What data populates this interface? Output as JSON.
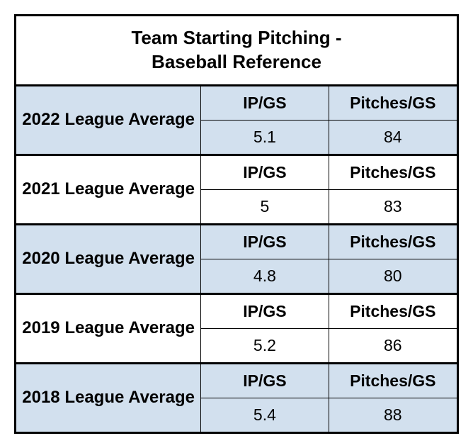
{
  "title_line1": "Team Starting Pitching -",
  "title_line2": "Baseball Reference",
  "col1_header": "IP/GS",
  "col2_header": "Pitches/GS",
  "shaded_bg": "#d2e0ee",
  "border_color": "#000000",
  "font_family": "Arial",
  "title_fontsize": 26,
  "label_fontsize": 24,
  "cell_fontsize": 23,
  "rows": [
    {
      "label": "2022 League Average",
      "ipgs": "5.1",
      "pitchesgs": "84",
      "shaded": true
    },
    {
      "label": "2021 League Average",
      "ipgs": "5",
      "pitchesgs": "83",
      "shaded": false
    },
    {
      "label": "2020 League Average",
      "ipgs": "4.8",
      "pitchesgs": "80",
      "shaded": true
    },
    {
      "label": "2019 League Average",
      "ipgs": "5.2",
      "pitchesgs": "86",
      "shaded": false
    },
    {
      "label": "2018 League Average",
      "ipgs": "5.4",
      "pitchesgs": "88",
      "shaded": true
    }
  ]
}
